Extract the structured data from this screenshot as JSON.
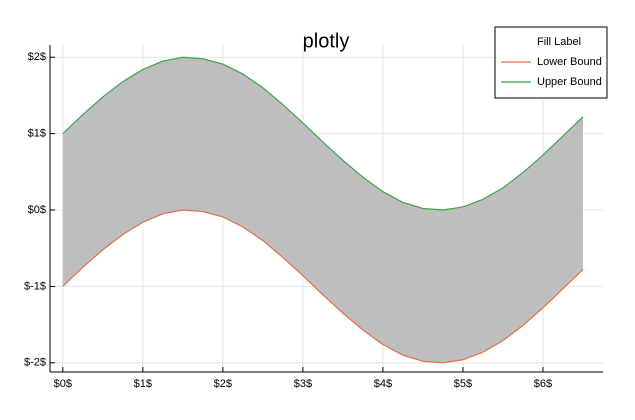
{
  "chart_data": {
    "type": "fill_between",
    "title": "plotly",
    "x": [
      0,
      0.25,
      0.5,
      0.75,
      1,
      1.25,
      1.5,
      1.75,
      2,
      2.25,
      2.5,
      2.75,
      3,
      3.25,
      3.5,
      3.75,
      4,
      4.25,
      4.5,
      4.75,
      5,
      5.25,
      5.5,
      5.75,
      6,
      6.25,
      6.5
    ],
    "series": [
      {
        "name": "Lower Bound",
        "color": "#e26f46",
        "values": [
          -1,
          -0.75,
          -0.52,
          -0.32,
          -0.16,
          -0.05,
          0,
          -0.02,
          -0.09,
          -0.22,
          -0.4,
          -0.62,
          -0.86,
          -1.11,
          -1.35,
          -1.57,
          -1.76,
          -1.9,
          -1.98,
          -2,
          -1.96,
          -1.86,
          -1.71,
          -1.51,
          -1.28,
          -1.03,
          -0.78
        ]
      },
      {
        "name": "Upper Bound",
        "color": "#3da44d",
        "values": [
          1,
          1.25,
          1.48,
          1.68,
          1.84,
          1.95,
          2,
          1.98,
          1.91,
          1.78,
          1.6,
          1.38,
          1.14,
          0.89,
          0.65,
          0.43,
          0.24,
          0.1,
          0.02,
          0,
          0.04,
          0.14,
          0.29,
          0.49,
          0.72,
          0.97,
          1.22
        ]
      }
    ],
    "fill": {
      "name": "Fill Label",
      "color": "#bebebe"
    },
    "xlim": [
      -0.16,
      6.75
    ],
    "xticks": [
      {
        "value": 0,
        "label": "$0$"
      },
      {
        "value": 1,
        "label": "$1$"
      },
      {
        "value": 2,
        "label": "$2$"
      },
      {
        "value": 3,
        "label": "$3$"
      },
      {
        "value": 4,
        "label": "$4$"
      },
      {
        "value": 5,
        "label": "$5$"
      },
      {
        "value": 6,
        "label": "$6$"
      }
    ],
    "ylim": [
      -2.12,
      2.16
    ],
    "yticks": [
      {
        "value": -2,
        "label": "$-2$"
      },
      {
        "value": -1,
        "label": "$-1$"
      },
      {
        "value": 0,
        "label": "$0$"
      },
      {
        "value": 1,
        "label": "$1$"
      },
      {
        "value": 2,
        "label": "$2$"
      }
    ],
    "grid": true,
    "legend": "top-right"
  }
}
